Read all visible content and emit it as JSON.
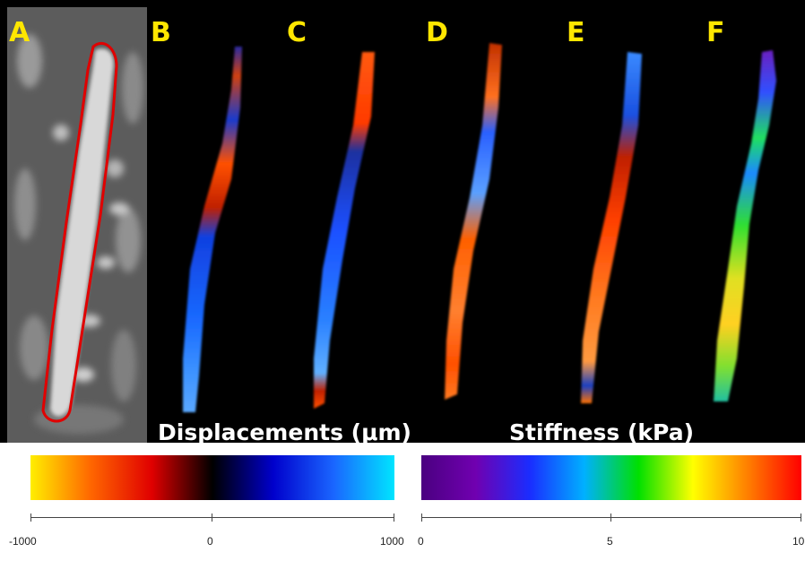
{
  "panels": {
    "labels": [
      "A",
      "B",
      "C",
      "D",
      "E",
      "F"
    ]
  },
  "displacement_scale": {
    "title": "Displacements (μm)",
    "tick_labels": [
      "-1000",
      "0",
      "1000"
    ],
    "colors": [
      "#ffee00",
      "#ff6600",
      "#e00000",
      "#000000",
      "#0000cc",
      "#1a66ff",
      "#00e5ff"
    ]
  },
  "stiffness_scale": {
    "title": "Stiffness (kPa)",
    "tick_labels": [
      "0",
      "5",
      "10"
    ],
    "colors": [
      "#4a0080",
      "#7000b0",
      "#1a2dff",
      "#00b0ff",
      "#00e000",
      "#ffff00",
      "#ff8000",
      "#ff0000"
    ]
  },
  "mri_contour_color": "#e00000"
}
